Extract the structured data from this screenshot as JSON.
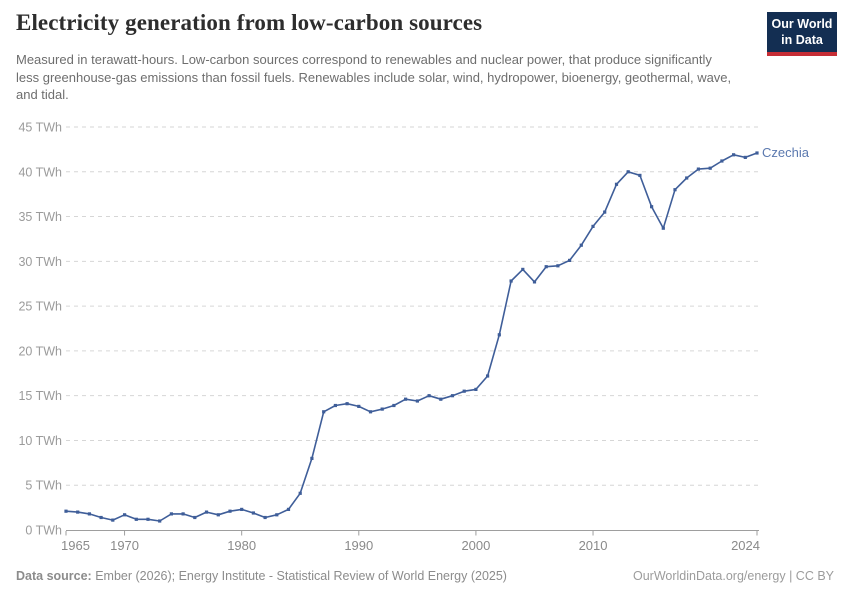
{
  "header": {
    "title": "Electricity generation from low-carbon sources",
    "subtitle": "Measured in terawatt-hours. Low-carbon sources correspond to renewables and nuclear power, that produce significantly less greenhouse-gas emissions than fossil fuels. Renewables include solar, wind, hydropower, bioenergy, geothermal, wave, and tidal.",
    "logo": {
      "line1": "Our World",
      "line2": "in Data"
    }
  },
  "chart_data": {
    "type": "line",
    "title": "Electricity generation from low-carbon sources",
    "unit": "TWh",
    "ylabel": "",
    "xlabel": "",
    "ylim": [
      0,
      45
    ],
    "xlim": [
      1965,
      2024
    ],
    "y_ticks": [
      0,
      5,
      10,
      15,
      20,
      25,
      30,
      35,
      40,
      45
    ],
    "x_ticks": [
      1965,
      1970,
      1980,
      1990,
      2000,
      2010,
      2024
    ],
    "grid": "horizontal-dashed",
    "legend_position": "end-of-line",
    "series": [
      {
        "name": "Czechia",
        "color": "#3f5e99",
        "years": [
          1965,
          1966,
          1967,
          1968,
          1969,
          1970,
          1971,
          1972,
          1973,
          1974,
          1975,
          1976,
          1977,
          1978,
          1979,
          1980,
          1981,
          1982,
          1983,
          1984,
          1985,
          1986,
          1987,
          1988,
          1989,
          1990,
          1991,
          1992,
          1993,
          1994,
          1995,
          1996,
          1997,
          1998,
          1999,
          2000,
          2001,
          2002,
          2003,
          2004,
          2005,
          2006,
          2007,
          2008,
          2009,
          2010,
          2011,
          2012,
          2013,
          2014,
          2015,
          2016,
          2017,
          2018,
          2019,
          2020,
          2021,
          2022,
          2023,
          2024
        ],
        "values": [
          2.1,
          2.0,
          1.8,
          1.4,
          1.1,
          1.7,
          1.2,
          1.2,
          1.0,
          1.8,
          1.8,
          1.4,
          2.0,
          1.7,
          2.1,
          2.3,
          1.9,
          1.4,
          1.7,
          2.3,
          4.1,
          8.0,
          13.2,
          13.9,
          14.1,
          13.8,
          13.2,
          13.5,
          13.9,
          14.6,
          14.4,
          15.0,
          14.6,
          15.0,
          15.5,
          15.7,
          17.2,
          21.8,
          27.8,
          29.1,
          27.7,
          29.4,
          29.5,
          30.1,
          31.8,
          33.9,
          35.5,
          38.6,
          40.0,
          39.6,
          36.1,
          33.7,
          38.0,
          39.3,
          40.3,
          40.4,
          41.2,
          41.9,
          41.6,
          42.1
        ]
      }
    ]
  },
  "footer": {
    "source_label": "Data source:",
    "source_text": "Ember (2026); Energy Institute - Statistical Review of World Energy (2025)",
    "link_text": "OurWorldinData.org/energy | CC BY"
  },
  "colors": {
    "line": "#3f5e99",
    "series_label": "#5b79af",
    "logo_bg": "#132e52",
    "logo_red": "#c62d35",
    "grid": "#d6d6d6",
    "axis": "#9e9e9e",
    "y_tick_label": "#9b9b9b",
    "x_tick_label": "#8a8a8a",
    "title_color": "#2d2d2d",
    "subtitle_color": "#6e6e6e"
  }
}
